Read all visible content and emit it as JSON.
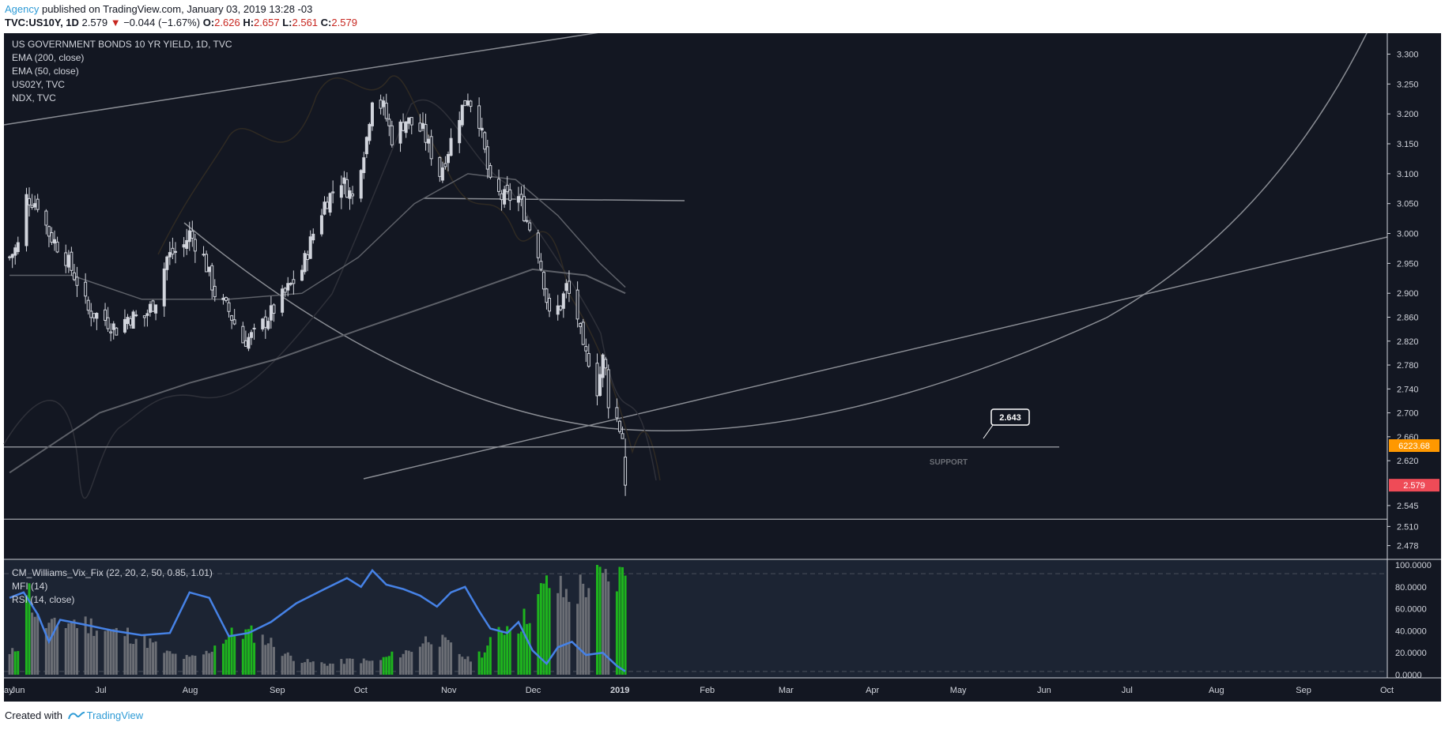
{
  "header": {
    "publisher": "Agency",
    "published_text": "published on TradingView.com, January 03, 2019 13:28 -03",
    "symbol": "TVC:US10Y, 1D",
    "last": "2.579",
    "change": "−0.044 (−1.67%)",
    "o_label": "O:",
    "o_value": "2.626",
    "h_label": "H:",
    "h_value": "2.657",
    "l_label": "L:",
    "l_value": "2.561",
    "c_label": "C:",
    "c_value": "2.579"
  },
  "legend": {
    "main": [
      "US GOVERNMENT BONDS 10 YR YIELD, 1D, TVC",
      "EMA (200, close)",
      "EMA (50, close)",
      "US02Y, TVC",
      "NDX, TVC"
    ],
    "lower": [
      "CM_Williams_Vix_Fix (22, 20, 2, 50, 0.85, 1.01)",
      "MFI (14)",
      "RSI (14, close)"
    ]
  },
  "colors": {
    "background": "#131722",
    "lower_background": "#1c2433",
    "candle": "#d1d4dc",
    "bar_gray": "#6b6e75",
    "bar_green": "#1eb31e",
    "line_blue": "#4682e6",
    "price_badge": "#ef4b57",
    "ndx_badge": "#ff9800",
    "axis_text": "#d1d4dc"
  },
  "annotations": {
    "callout": "2.643",
    "support_label": "SUPPORT"
  },
  "price_axis": {
    "ticks": [
      "3.300",
      "3.250",
      "3.200",
      "3.150",
      "3.100",
      "3.050",
      "3.000",
      "2.950",
      "2.900",
      "2.860",
      "2.820",
      "2.780",
      "2.740",
      "2.700",
      "2.660",
      "2.620",
      "2.545",
      "2.510",
      "2.478"
    ],
    "last_price_badge": "2.579",
    "ndx_badge": "6223.68"
  },
  "lower_axis": {
    "ticks": [
      "100.0000",
      "80.0000",
      "60.0000",
      "40.0000",
      "20.0000",
      "0.0000"
    ]
  },
  "time_axis": {
    "labels": [
      "ay",
      "Jun",
      "Jul",
      "Aug",
      "Sep",
      "Oct",
      "Nov",
      "Dec",
      "2019",
      "Feb",
      "Mar",
      "Apr",
      "May",
      "Jun",
      "Jul",
      "Aug",
      "Sep",
      "Oct"
    ]
  },
  "footer": {
    "created_with": "Created with",
    "brand": "TradingView"
  },
  "chart_data": {
    "type": "candlestick",
    "title": "US GOVERNMENT BONDS 10 YR YIELD, 1D, TVC",
    "ylim": [
      2.455,
      3.335
    ],
    "x_range": [
      "2018-05-27",
      "2019-10-01"
    ],
    "grid": false,
    "support_levels": [
      2.643,
      2.522
    ],
    "price_path": [
      [
        "2018-05-29",
        2.96
      ],
      [
        "2018-06-01",
        2.98
      ],
      [
        "2018-06-04",
        3.06
      ],
      [
        "2018-06-08",
        3.05
      ],
      [
        "2018-06-12",
        3.0
      ],
      [
        "2018-06-18",
        2.96
      ],
      [
        "2018-06-22",
        2.92
      ],
      [
        "2018-06-26",
        2.87
      ],
      [
        "2018-07-01",
        2.86
      ],
      [
        "2018-07-06",
        2.84
      ],
      [
        "2018-07-10",
        2.86
      ],
      [
        "2018-07-16",
        2.86
      ],
      [
        "2018-07-20",
        2.89
      ],
      [
        "2018-07-24",
        2.96
      ],
      [
        "2018-07-30",
        2.98
      ],
      [
        "2018-08-01",
        3.0
      ],
      [
        "2018-08-06",
        2.96
      ],
      [
        "2018-08-10",
        2.9
      ],
      [
        "2018-08-15",
        2.87
      ],
      [
        "2018-08-20",
        2.82
      ],
      [
        "2018-08-24",
        2.83
      ],
      [
        "2018-08-29",
        2.86
      ],
      [
        "2018-09-04",
        2.9
      ],
      [
        "2018-09-10",
        2.94
      ],
      [
        "2018-09-14",
        3.0
      ],
      [
        "2018-09-18",
        3.05
      ],
      [
        "2018-09-24",
        3.09
      ],
      [
        "2018-09-28",
        3.06
      ],
      [
        "2018-10-03",
        3.16
      ],
      [
        "2018-10-05",
        3.23
      ],
      [
        "2018-10-09",
        3.21
      ],
      [
        "2018-10-12",
        3.16
      ],
      [
        "2018-10-17",
        3.19
      ],
      [
        "2018-10-23",
        3.17
      ],
      [
        "2018-10-29",
        3.1
      ],
      [
        "2018-11-01",
        3.14
      ],
      [
        "2018-11-05",
        3.2
      ],
      [
        "2018-11-08",
        3.23
      ],
      [
        "2018-11-12",
        3.19
      ],
      [
        "2018-11-16",
        3.08
      ],
      [
        "2018-11-20",
        3.06
      ],
      [
        "2018-11-26",
        3.06
      ],
      [
        "2018-11-30",
        3.01
      ],
      [
        "2018-12-03",
        2.97
      ],
      [
        "2018-12-05",
        2.92
      ],
      [
        "2018-12-07",
        2.86
      ],
      [
        "2018-12-11",
        2.88
      ],
      [
        "2018-12-13",
        2.91
      ],
      [
        "2018-12-17",
        2.86
      ],
      [
        "2018-12-19",
        2.8
      ],
      [
        "2018-12-21",
        2.79
      ],
      [
        "2018-12-24",
        2.74
      ],
      [
        "2018-12-26",
        2.79
      ],
      [
        "2018-12-27",
        2.77
      ],
      [
        "2018-12-28",
        2.72
      ],
      [
        "2018-12-31",
        2.69
      ],
      [
        "2019-01-02",
        2.66
      ],
      [
        "2019-01-03",
        2.579
      ]
    ],
    "last": {
      "open": 2.626,
      "high": 2.657,
      "low": 2.561,
      "close": 2.579
    },
    "ema50_path": [
      [
        "2018-05-29",
        2.93
      ],
      [
        "2018-06-20",
        2.93
      ],
      [
        "2018-07-15",
        2.89
      ],
      [
        "2018-08-15",
        2.89
      ],
      [
        "2018-09-10",
        2.9
      ],
      [
        "2018-09-30",
        2.96
      ],
      [
        "2018-10-20",
        3.05
      ],
      [
        "2018-11-08",
        3.1
      ],
      [
        "2018-11-25",
        3.09
      ],
      [
        "2018-12-10",
        3.03
      ],
      [
        "2018-12-25",
        2.95
      ],
      [
        "2019-01-03",
        2.91
      ]
    ],
    "ema200_path": [
      [
        "2018-05-29",
        2.6
      ],
      [
        "2018-06-30",
        2.7
      ],
      [
        "2018-08-01",
        2.75
      ],
      [
        "2018-09-01",
        2.79
      ],
      [
        "2018-10-01",
        2.84
      ],
      [
        "2018-11-01",
        2.89
      ],
      [
        "2018-12-01",
        2.94
      ],
      [
        "2018-12-20",
        2.93
      ],
      [
        "2019-01-03",
        2.9
      ]
    ],
    "indicator": {
      "name": "CM_Williams_Vix_Fix (22, 20, 2, 50, 0.85, 1.01)",
      "ylim": [
        0,
        100
      ],
      "upper_band": 92,
      "lower_band": 3,
      "vix_fix_bars": [
        [
          "2018-05-29",
          18,
          false
        ],
        [
          "2018-06-02",
          30,
          true
        ],
        [
          "2018-06-04",
          85,
          true
        ],
        [
          "2018-06-08",
          50,
          false
        ],
        [
          "2018-06-14",
          44,
          false
        ],
        [
          "2018-06-20",
          50,
          false
        ],
        [
          "2018-06-28",
          46,
          false
        ],
        [
          "2018-07-04",
          40,
          false
        ],
        [
          "2018-07-10",
          38,
          false
        ],
        [
          "2018-07-18",
          30,
          false
        ],
        [
          "2018-07-24",
          20,
          false
        ],
        [
          "2018-08-01",
          15,
          false
        ],
        [
          "2018-08-07",
          20,
          false
        ],
        [
          "2018-08-12",
          32,
          true
        ],
        [
          "2018-08-18",
          40,
          true
        ],
        [
          "2018-08-24",
          38,
          true
        ],
        [
          "2018-08-30",
          30,
          false
        ],
        [
          "2018-09-05",
          18,
          false
        ],
        [
          "2018-09-12",
          12,
          false
        ],
        [
          "2018-09-20",
          10,
          false
        ],
        [
          "2018-09-28",
          14,
          false
        ],
        [
          "2018-10-06",
          12,
          false
        ],
        [
          "2018-10-12",
          18,
          true
        ],
        [
          "2018-10-18",
          22,
          false
        ],
        [
          "2018-10-26",
          36,
          false
        ],
        [
          "2018-11-01",
          28,
          false
        ],
        [
          "2018-11-08",
          14,
          false
        ],
        [
          "2018-11-14",
          22,
          true
        ],
        [
          "2018-11-20",
          44,
          true
        ],
        [
          "2018-11-27",
          48,
          true
        ],
        [
          "2018-12-03",
          72,
          true
        ],
        [
          "2018-12-07",
          85,
          true
        ],
        [
          "2018-12-11",
          78,
          false
        ],
        [
          "2018-12-15",
          72,
          false
        ],
        [
          "2018-12-19",
          84,
          false
        ],
        [
          "2018-12-24",
          88,
          true
        ],
        [
          "2018-12-28",
          86,
          false
        ],
        [
          "2019-01-02",
          92,
          true
        ],
        [
          "2019-01-03",
          100,
          true
        ]
      ],
      "rsi_path": [
        [
          "2018-05-29",
          70
        ],
        [
          "2018-06-03",
          75
        ],
        [
          "2018-06-08",
          55
        ],
        [
          "2018-06-12",
          30
        ],
        [
          "2018-06-16",
          50
        ],
        [
          "2018-06-24",
          46
        ],
        [
          "2018-07-05",
          40
        ],
        [
          "2018-07-15",
          36
        ],
        [
          "2018-07-25",
          38
        ],
        [
          "2018-08-01",
          75
        ],
        [
          "2018-08-08",
          70
        ],
        [
          "2018-08-15",
          35
        ],
        [
          "2018-08-22",
          38
        ],
        [
          "2018-08-30",
          48
        ],
        [
          "2018-09-08",
          65
        ],
        [
          "2018-09-18",
          78
        ],
        [
          "2018-09-26",
          88
        ],
        [
          "2018-10-01",
          80
        ],
        [
          "2018-10-05",
          95
        ],
        [
          "2018-10-10",
          82
        ],
        [
          "2018-10-16",
          78
        ],
        [
          "2018-10-22",
          72
        ],
        [
          "2018-10-28",
          62
        ],
        [
          "2018-11-02",
          75
        ],
        [
          "2018-11-07",
          80
        ],
        [
          "2018-11-12",
          58
        ],
        [
          "2018-11-16",
          42
        ],
        [
          "2018-11-22",
          38
        ],
        [
          "2018-11-26",
          48
        ],
        [
          "2018-12-01",
          22
        ],
        [
          "2018-12-06",
          10
        ],
        [
          "2018-12-10",
          25
        ],
        [
          "2018-12-15",
          30
        ],
        [
          "2018-12-20",
          18
        ],
        [
          "2018-12-26",
          20
        ],
        [
          "2018-12-31",
          8
        ],
        [
          "2019-01-03",
          3
        ]
      ]
    }
  }
}
